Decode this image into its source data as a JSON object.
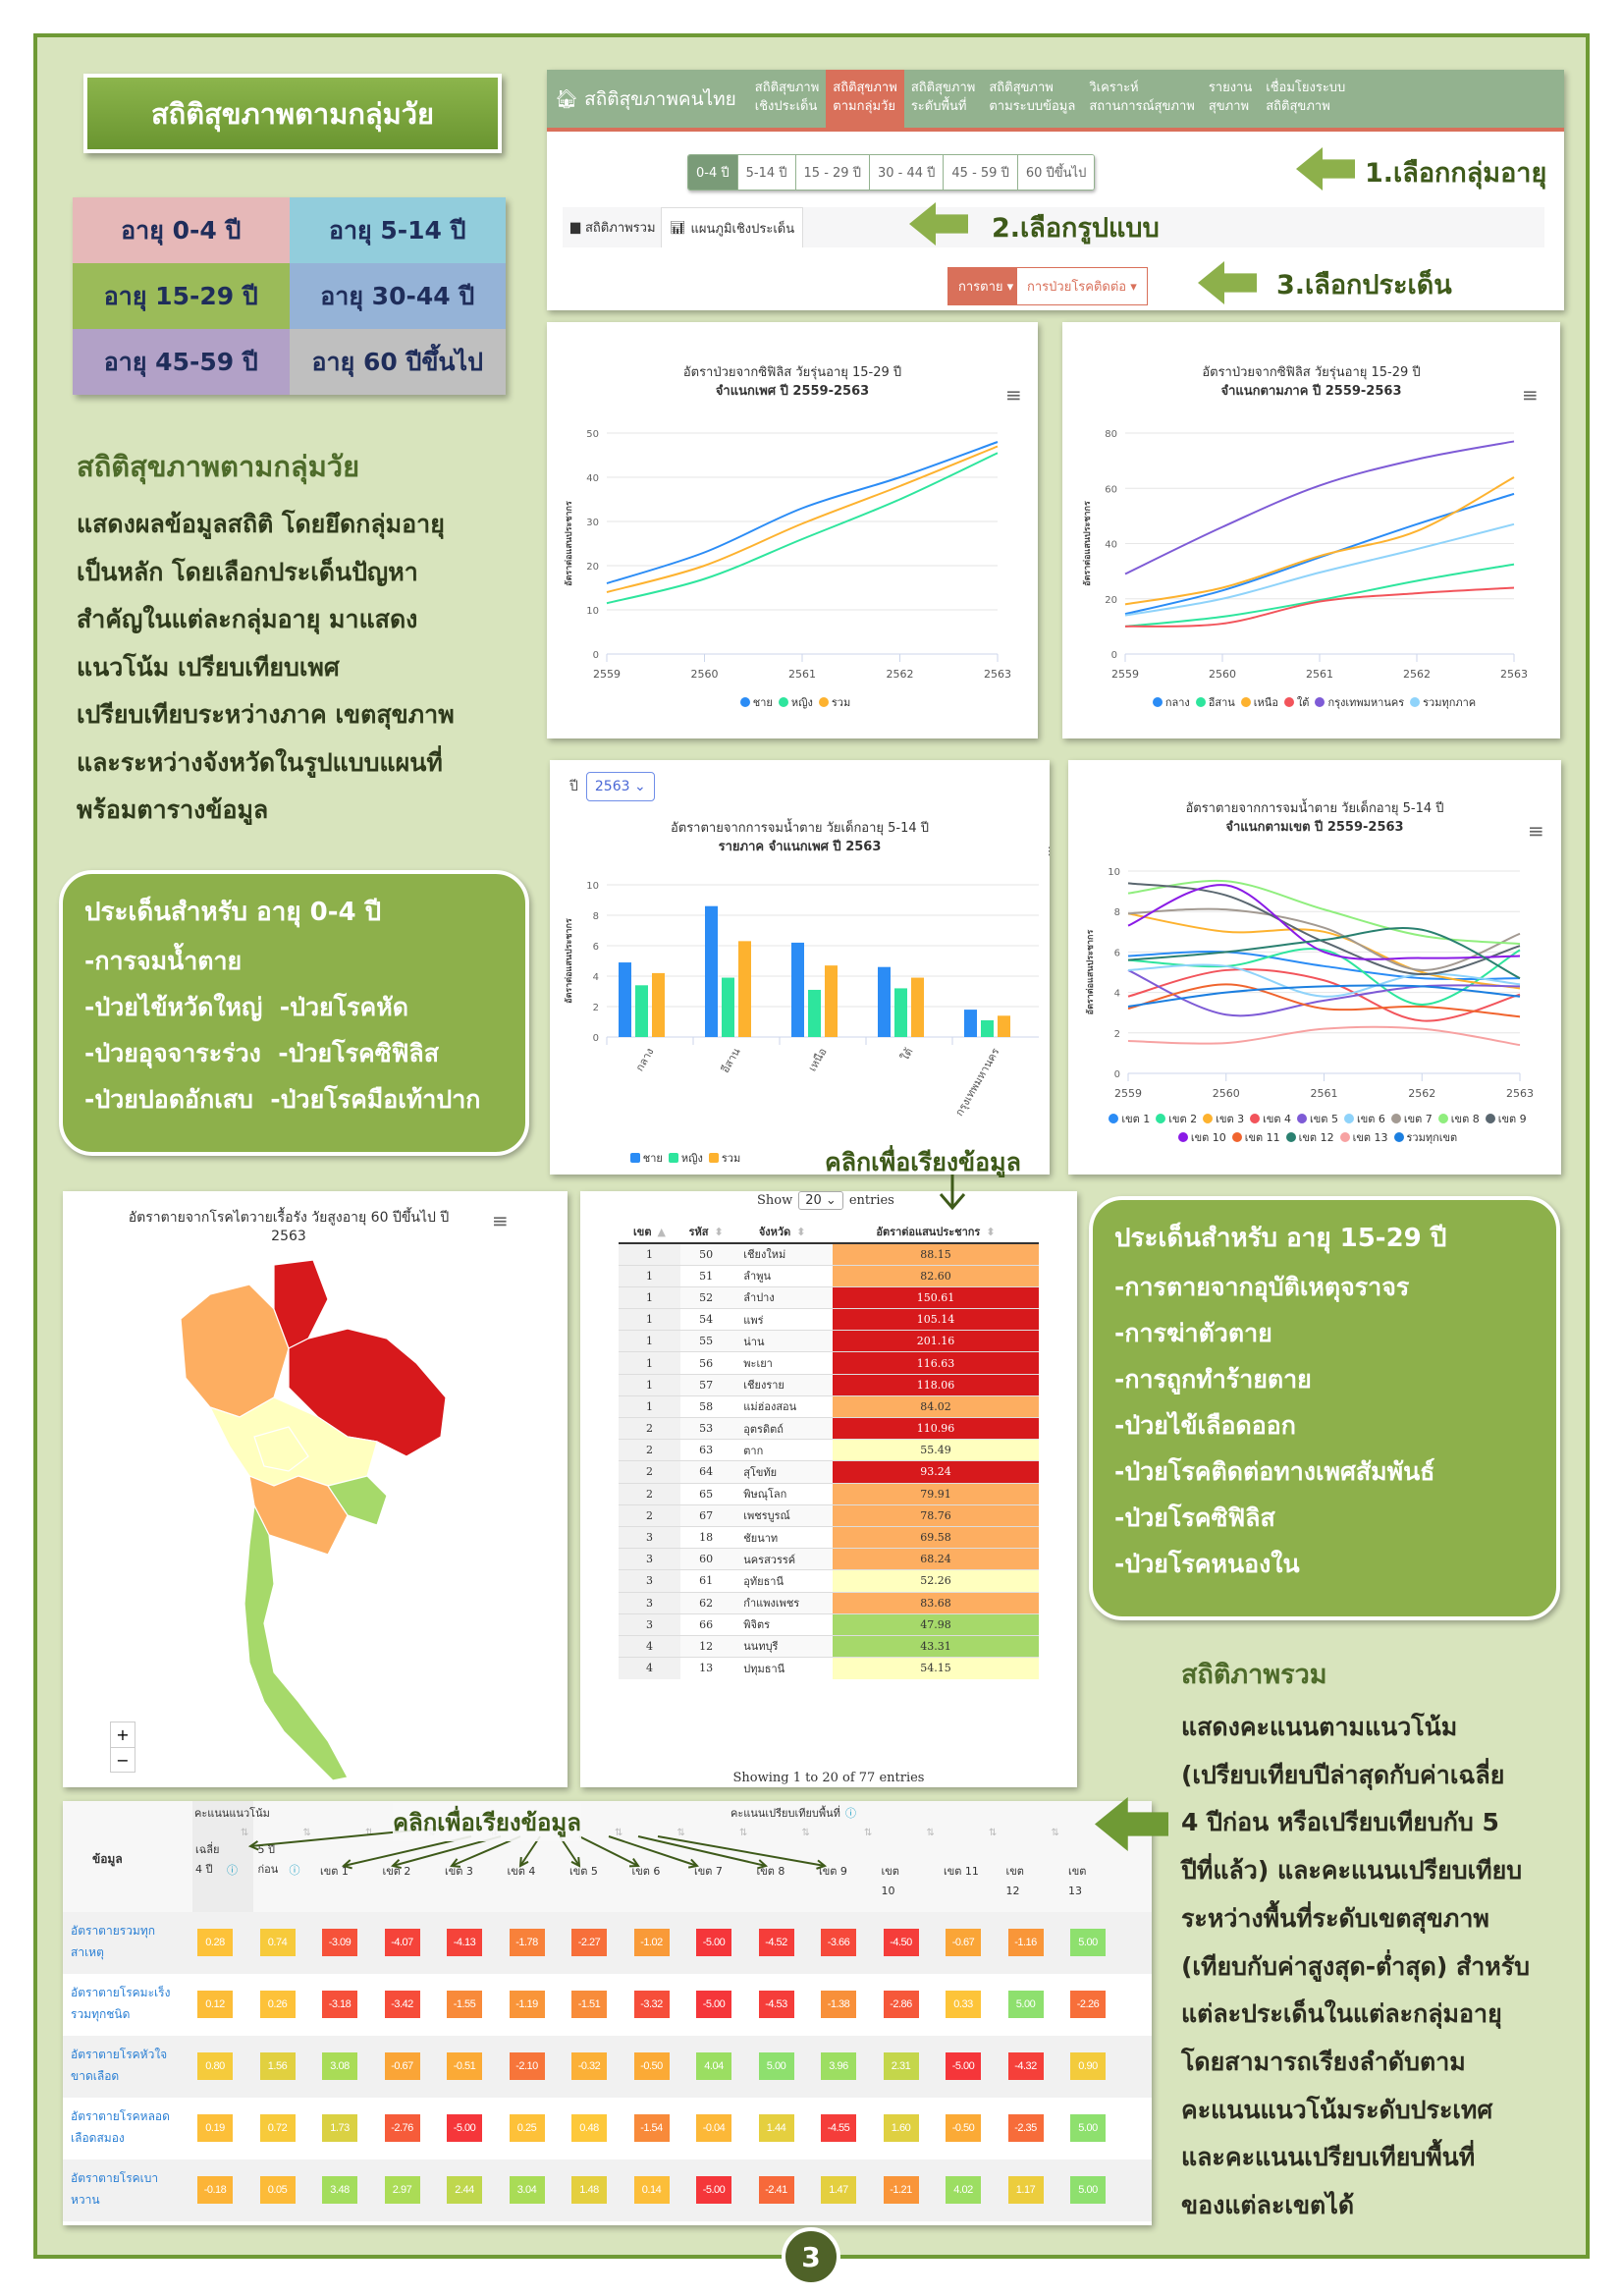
{
  "page_title": "สถิติสุขภาพตามกลุ่มวัย",
  "age_groups": [
    {
      "label": "อายุ 0-4 ปี",
      "color": "#e6b8b8"
    },
    {
      "label": "อายุ 5-14 ปี",
      "color": "#92cddc"
    },
    {
      "label": "อายุ 15-29 ปี",
      "color": "#9bbb59"
    },
    {
      "label": "อายุ 30-44 ปี",
      "color": "#95b3d7"
    },
    {
      "label": "อายุ 45-59 ปี",
      "color": "#b2a1c7"
    },
    {
      "label": "อายุ 60 ปีขึ้นไป",
      "color": "#bfbfbf"
    }
  ],
  "intro": {
    "heading": "สถิติสุขภาพตามกลุ่มวัย",
    "lines": [
      "แสดงผลข้อมูลสถิติ โดยยึดกลุ่มอายุ",
      "เป็นหลัก โดยเลือกประเด็นปัญหา",
      "สำคัญในแต่ละกลุ่มอายุ มาแสดง",
      "แนวโน้ม เปรียบเทียบเพศ",
      "เปรียบเทียบระหว่างภาค เขตสุขภาพ",
      "และระหว่างจังหวัดในรูปแบบแผนที่",
      "พร้อมตารางข้อมูล"
    ]
  },
  "box_0_4": {
    "title": "ประเด็นสำหรับ อายุ 0-4 ปี",
    "items": [
      "-การจมน้ำตาย",
      "-ป่วยไข้หวัดใหญ่  -ป่วยโรคหัด",
      "-ป่วยอุจจาระร่วง  -ป่วยโรคซิฟิลิส",
      "-ป่วยปอดอักเสบ  -ป่วยโรคมือเท้าปาก"
    ]
  },
  "nav": {
    "brand": "สถิติสุขภาพคนไทย",
    "items": [
      "สถิติสุขภาพ\nเชิงประเด็น",
      "สถิติสุขภาพ\nตามกลุ่มวัย",
      "สถิติสุขภาพ\nระดับพื้นที่",
      "สถิติสุขภาพ\nตามระบบข้อมูล",
      "วิเคราะห์\nสถานการณ์สุขภาพ",
      "รายงาน\nสุขภาพ",
      "เชื่อมโยงระบบ\nสถิติสุขภาพ"
    ],
    "active_index": 1,
    "age_buttons": [
      "0-4 ปี",
      "5-14 ปี",
      "15 - 29 ปี",
      "30 - 44 ปี",
      "45 - 59 ปี",
      "60 ปีขึ้นไป"
    ],
    "tabs": [
      "สถิติภาพรวม",
      "แผนภูมิเชิงประเด็น"
    ],
    "dropdowns": [
      "การตาย",
      "การป่วยโรคติดต่อ"
    ],
    "steps": [
      "1.เลือกกลุ่มอายุ",
      "2.เลือกรูปแบบ",
      "3.เลือกประเด็น"
    ],
    "active_color": "#d9705a",
    "bar_color": "#93b28f"
  },
  "chart_data": [
    {
      "type": "line",
      "title": "อัตราป่วยจากซิฟิลิส วัยรุ่นอายุ 15-29 ปี",
      "subtitle": "จำแนกเพศ ปี 2559-2563",
      "ylabel": "อัตราต่อแสนประชากร",
      "x": [
        "2559",
        "2560",
        "2561",
        "2562",
        "2563"
      ],
      "ylim": [
        0,
        50
      ],
      "yticks": [
        0,
        10,
        20,
        30,
        40,
        50
      ],
      "series": [
        {
          "name": "ชาย",
          "color": "#2b8cf5",
          "values": [
            16,
            23,
            33,
            40,
            48
          ]
        },
        {
          "name": "หญิง",
          "color": "#2ee59d",
          "values": [
            11.5,
            17,
            26,
            35,
            45.5
          ]
        },
        {
          "name": "รวม",
          "color": "#fdb22f",
          "values": [
            14,
            20,
            29.5,
            38,
            47
          ]
        }
      ]
    },
    {
      "type": "line",
      "title": "อัตราป่วยจากซิฟิลิส วัยรุ่นอายุ 15-29 ปี",
      "subtitle": "จำแนกตามภาค ปี 2559-2563",
      "ylabel": "อัตราต่อแสนประชากร",
      "x": [
        "2559",
        "2560",
        "2561",
        "2562",
        "2563"
      ],
      "ylim": [
        0,
        80
      ],
      "yticks": [
        0,
        20,
        40,
        60,
        80
      ],
      "series": [
        {
          "name": "กลาง",
          "color": "#2b8cf5",
          "values": [
            14.5,
            23,
            35,
            47,
            58
          ]
        },
        {
          "name": "อีสาน",
          "color": "#2ee59d",
          "values": [
            10,
            13.5,
            19.5,
            26.5,
            32.5
          ]
        },
        {
          "name": "เหนือ",
          "color": "#fdb22f",
          "values": [
            18,
            24,
            35.5,
            44.5,
            64
          ]
        },
        {
          "name": "ใต้",
          "color": "#f2545b",
          "values": [
            10,
            11,
            19,
            22,
            24
          ]
        },
        {
          "name": "กรุงเทพมหานคร",
          "color": "#7e5bd6",
          "values": [
            29,
            46,
            61,
            70.5,
            77
          ]
        },
        {
          "name": "รวมทุกภาค",
          "color": "#8fd3fa",
          "values": [
            14,
            20,
            29.5,
            38,
            47
          ]
        }
      ]
    },
    {
      "type": "bar",
      "year_label": "ปี",
      "year_selected": "2563",
      "title": "อัตราตายจากการจมน้ำตาย วัยเด็กอายุ 5-14 ปี",
      "subtitle": "รายภาค จำแนกเพศ ปี 2563",
      "ylabel": "อัตราต่อแสนประชากร",
      "categories": [
        "กลาง",
        "อีสาน",
        "เหนือ",
        "ใต้",
        "กรุงเทพมหานคร"
      ],
      "ylim": [
        0,
        10
      ],
      "yticks": [
        0,
        2,
        4,
        6,
        8,
        10
      ],
      "series": [
        {
          "name": "ชาย",
          "color": "#2b8cf5",
          "values": [
            4.9,
            8.6,
            6.2,
            4.6,
            1.8
          ]
        },
        {
          "name": "หญิง",
          "color": "#2ee59d",
          "values": [
            3.4,
            3.9,
            3.1,
            3.2,
            1.1
          ]
        },
        {
          "name": "รวม",
          "color": "#fdb22f",
          "values": [
            4.2,
            6.3,
            4.7,
            3.9,
            1.4
          ]
        }
      ]
    },
    {
      "type": "line",
      "title": "อัตราตายจากการจมน้ำตาย วัยเด็กอายุ 5-14 ปี",
      "subtitle": "จำแนกตามเขต ปี 2559-2563",
      "ylabel": "อัตราต่อแสนประชากร",
      "x": [
        "2559",
        "2560",
        "2561",
        "2562",
        "2563"
      ],
      "ylim": [
        0,
        10
      ],
      "yticks": [
        0,
        2,
        4,
        6,
        8,
        10
      ],
      "series": [
        {
          "name": "เขต 1",
          "color": "#2b8cf5",
          "values": [
            5.8,
            6.0,
            5.3,
            4.7,
            4.7
          ]
        },
        {
          "name": "เขต 2",
          "color": "#2ee59d",
          "values": [
            5.6,
            5.3,
            6.1,
            3.4,
            6.1
          ]
        },
        {
          "name": "เขต 3",
          "color": "#fdb22f",
          "values": [
            7.9,
            7.0,
            7.0,
            5.0,
            4.2
          ]
        },
        {
          "name": "เขต 4",
          "color": "#f2545b",
          "values": [
            3.8,
            5.1,
            4.6,
            2.6,
            3.9
          ]
        },
        {
          "name": "เขต 5",
          "color": "#7e5bd6",
          "values": [
            5.1,
            2.9,
            3.6,
            4.3,
            4.3
          ]
        },
        {
          "name": "เขต 6",
          "color": "#8fd3fa",
          "values": [
            5.1,
            5.3,
            3.8,
            4.9,
            4.4
          ]
        },
        {
          "name": "เขต 7",
          "color": "#a39a92",
          "values": [
            7.9,
            8.1,
            7.2,
            5.1,
            6.9
          ]
        },
        {
          "name": "เขต 8",
          "color": "#90ee7e",
          "values": [
            8.9,
            9.5,
            8.1,
            6.8,
            6.4
          ]
        },
        {
          "name": "เขต 9",
          "color": "#5a6770",
          "values": [
            9.4,
            8.8,
            6.5,
            4.9,
            6.3
          ]
        },
        {
          "name": "เขต 10",
          "color": "#8a1be6",
          "values": [
            7.3,
            9.3,
            6.0,
            5.7,
            5.8
          ]
        },
        {
          "name": "เขต 11",
          "color": "#f0642e",
          "values": [
            3.2,
            4.4,
            3.2,
            3.3,
            2.8
          ]
        },
        {
          "name": "เขต 12",
          "color": "#2a8070",
          "values": [
            5.6,
            6.0,
            6.6,
            7.1,
            4.7
          ]
        },
        {
          "name": "เขต 13",
          "color": "#f7a2a2",
          "values": [
            1.6,
            1.5,
            2.2,
            2.2,
            1.4
          ]
        },
        {
          "name": "รวมทุกเขต",
          "color": "#1c7fe0",
          "values": [
            3.3,
            4.0,
            4.3,
            4.3,
            3.8
          ]
        }
      ]
    }
  ],
  "map": {
    "title": "อัตราตายจากโรคไตวายเรื้อรัง วัยสูงอายุ 60 ปีขึ้นไป ปี 2563",
    "zoom_in": "+",
    "zoom_out": "−"
  },
  "data_table": {
    "show_label": "Show",
    "entries_value": "20",
    "entries_label": "entries",
    "columns": [
      "เขต",
      "รหัส",
      "จังหวัด",
      "อัตราต่อแสนประชากร"
    ],
    "rows": [
      [
        "1",
        "50",
        "เชียงใหม่",
        "88.15"
      ],
      [
        "1",
        "51",
        "ลำพูน",
        "82.60"
      ],
      [
        "1",
        "52",
        "ลำปาง",
        "150.61"
      ],
      [
        "1",
        "54",
        "แพร่",
        "105.14"
      ],
      [
        "1",
        "55",
        "น่าน",
        "201.16"
      ],
      [
        "1",
        "56",
        "พะเยา",
        "116.63"
      ],
      [
        "1",
        "57",
        "เชียงราย",
        "118.06"
      ],
      [
        "1",
        "58",
        "แม่ฮ่องสอน",
        "84.02"
      ],
      [
        "2",
        "53",
        "อุตรดิตถ์",
        "110.96"
      ],
      [
        "2",
        "63",
        "ตาก",
        "55.49"
      ],
      [
        "2",
        "64",
        "สุโขทัย",
        "93.24"
      ],
      [
        "2",
        "65",
        "พิษณุโลก",
        "79.91"
      ],
      [
        "2",
        "67",
        "เพชรบูรณ์",
        "78.76"
      ],
      [
        "3",
        "18",
        "ชัยนาท",
        "69.58"
      ],
      [
        "3",
        "60",
        "นครสวรรค์",
        "68.24"
      ],
      [
        "3",
        "61",
        "อุทัยธานี",
        "52.26"
      ],
      [
        "3",
        "62",
        "กำแพงเพชร",
        "83.68"
      ],
      [
        "3",
        "66",
        "พิจิตร",
        "47.98"
      ],
      [
        "4",
        "12",
        "นนทบุรี",
        "43.31"
      ],
      [
        "4",
        "13",
        "ปทุมธานี",
        "54.15"
      ]
    ],
    "footer": "Showing 1 to 20 of 77 entries"
  },
  "box_15_29": {
    "title": "ประเด็นสำหรับ อายุ 15-29 ปี",
    "items": [
      "-การตายจากอุบัติเหตุจราจร",
      "-การฆ่าตัวตาย",
      "-การถูกทำร้ายตาย",
      "-ป่วยไข้เลือดออก",
      "-ป่วยโรคติดต่อทางเพศสัมพันธ์",
      "-ป่วยโรคซิฟิลิส",
      "-ป่วยโรคหนองใน"
    ]
  },
  "overview": {
    "heading": "สถิติภาพรวม",
    "lines": [
      "แสดงคะแนนตามแนวโน้ม",
      "(เปรียบเทียบปีล่าสุดกับค่าเฉลี่ย",
      "4 ปีก่อน หรือเปรียบเทียบกับ 5",
      "ปีที่แล้ว) และคะแนนเปรียบเทียบ",
      "ระหว่างพื้นที่ระดับเขตสุขภาพ",
      "(เทียบกับค่าสูงสุด-ต่ำสุด) สำหรับ",
      "แต่ละประเด็นในแต่ละกลุ่มอายุ",
      "โดยสามารถเรียงลำดับตาม",
      "คะแนนแนวโน้มระดับประเทศ",
      "และคะแนนเปรียบเทียบพื้นที่",
      "ของแต่ละเขตได้"
    ]
  },
  "score_table": {
    "data_header": "ข้อมูล",
    "trend_header": "คะแนนแนวโน้ม",
    "area_header": "คะแนนเปรียบเทียบพื้นที่",
    "columns": [
      "เฉลี่ย\n4 ปี",
      "5 ปี\nก่อน",
      "เขต 1",
      "เขต 2",
      "เขต 3",
      "เขต 4",
      "เขต 5",
      "เขต 6",
      "เขต 7",
      "เขต 8",
      "เขต 9",
      "เขต\n10",
      "เขต 11",
      "เขต\n12",
      "เขต\n13"
    ],
    "rows": [
      {
        "label": "อัตราตายรวมทุก\nสาเหตุ",
        "values": [
          "0.28",
          "0.74",
          "-3.09",
          "-4.07",
          "-4.13",
          "-1.78",
          "-2.27",
          "-1.02",
          "-5.00",
          "-4.52",
          "-3.66",
          "-4.50",
          "-0.67",
          "-1.16",
          "5.00"
        ]
      },
      {
        "label": "อัตราตายโรคมะเร็ง\nรวมทุกชนิด",
        "values": [
          "0.12",
          "0.26",
          "-3.18",
          "-3.42",
          "-1.55",
          "-1.19",
          "-1.51",
          "-3.32",
          "-5.00",
          "-4.53",
          "-1.38",
          "-2.86",
          "0.33",
          "5.00",
          "-2.26"
        ]
      },
      {
        "label": "อัตราตายโรคหัวใจ\nขาดเลือด",
        "values": [
          "0.80",
          "1.56",
          "3.08",
          "-0.67",
          "-0.51",
          "-2.10",
          "-0.32",
          "-0.50",
          "4.04",
          "5.00",
          "3.96",
          "2.31",
          "-5.00",
          "-4.32",
          "0.90"
        ]
      },
      {
        "label": "อัตราตายโรคหลอด\nเลือดสมอง",
        "values": [
          "0.19",
          "0.72",
          "1.73",
          "-2.76",
          "-5.00",
          "0.25",
          "0.48",
          "-1.54",
          "-0.04",
          "1.44",
          "-4.55",
          "1.60",
          "-0.50",
          "-2.35",
          "5.00"
        ]
      },
      {
        "label": "อัตราตายโรคเบา\nหวาน",
        "values": [
          "-0.18",
          "0.05",
          "3.48",
          "2.97",
          "2.44",
          "3.04",
          "1.48",
          "0.14",
          "-5.00",
          "-2.41",
          "1.47",
          "-1.21",
          "4.02",
          "1.17",
          "5.00"
        ]
      }
    ]
  },
  "annotations": {
    "click_to_sort": "คลิกเพื่อเรียงข้อมูล"
  },
  "page_number": "3"
}
